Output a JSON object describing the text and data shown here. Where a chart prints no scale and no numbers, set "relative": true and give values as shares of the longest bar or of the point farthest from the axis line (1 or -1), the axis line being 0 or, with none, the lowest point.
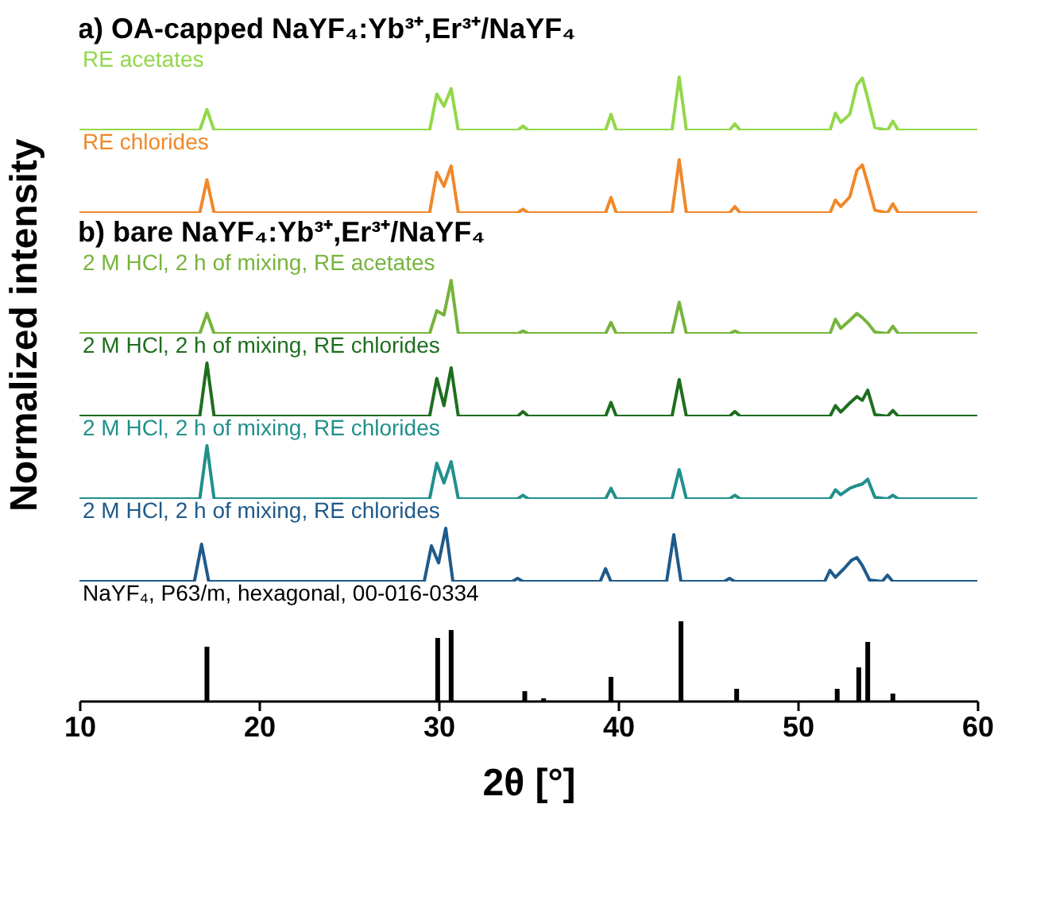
{
  "chart_data": [
    {
      "type": "line",
      "title": "a) OA-capped NaYF₄:Yb³⁺,Er³⁺/NaYF₄",
      "ylabel": "Normalized intensity",
      "relative": true,
      "xlim": [
        10,
        60
      ],
      "tick_labels": false,
      "x": [
        10,
        16.7,
        17.1,
        17.5,
        29.5,
        29.9,
        30.3,
        30.7,
        31.1,
        34.4,
        34.7,
        35.0,
        39.3,
        39.6,
        39.9,
        43.0,
        43.4,
        43.8,
        46.2,
        46.5,
        46.8,
        51.8,
        52.1,
        52.4,
        52.9,
        53.3,
        53.6,
        53.9,
        54.3,
        55.0,
        55.3,
        55.6,
        60
      ],
      "series": [
        {
          "name": "RE acetates",
          "color": "#92d84a",
          "values": [
            0,
            0,
            0.39,
            0,
            0,
            0.68,
            0.45,
            0.78,
            0,
            0,
            0.08,
            0,
            0,
            0.3,
            0,
            0,
            1,
            0,
            0,
            0.12,
            0,
            0,
            0.32,
            0.15,
            0.3,
            0.85,
            0.98,
            0.6,
            0.05,
            0,
            0.17,
            0,
            0
          ]
        }
      ]
    },
    {
      "type": "line",
      "relative": true,
      "xlim": [
        10,
        60
      ],
      "tick_labels": false,
      "x": [
        10,
        16.7,
        17.1,
        17.5,
        29.5,
        29.9,
        30.3,
        30.7,
        31.1,
        34.4,
        34.7,
        35.0,
        39.3,
        39.6,
        39.9,
        43.0,
        43.4,
        43.8,
        46.2,
        46.5,
        46.8,
        51.8,
        52.1,
        52.4,
        52.9,
        53.3,
        53.6,
        53.9,
        54.3,
        55.0,
        55.3,
        55.6,
        60
      ],
      "series": [
        {
          "name": "RE chlorides",
          "color": "#f0882a",
          "values": [
            0,
            0,
            0.62,
            0,
            0,
            0.76,
            0.5,
            0.88,
            0,
            0,
            0.07,
            0,
            0,
            0.29,
            0,
            0,
            1,
            0,
            0,
            0.12,
            0,
            0,
            0.24,
            0.12,
            0.3,
            0.8,
            0.9,
            0.55,
            0.05,
            0,
            0.17,
            0,
            0
          ]
        }
      ]
    },
    {
      "type": "line",
      "title": "b) bare NaYF₄:Yb³⁺,Er³⁺/NaYF₄",
      "relative": true,
      "xlim": [
        10,
        60
      ],
      "tick_labels": false,
      "x": [
        10,
        16.7,
        17.1,
        17.5,
        29.5,
        29.9,
        30.3,
        30.7,
        31.1,
        34.4,
        34.7,
        35.0,
        39.3,
        39.6,
        39.9,
        43.0,
        43.4,
        43.8,
        46.2,
        46.5,
        46.8,
        51.8,
        52.1,
        52.4,
        52.9,
        53.3,
        53.6,
        53.9,
        54.3,
        55.0,
        55.3,
        55.6,
        60
      ],
      "series": [
        {
          "name": "2 M HCl, 2 h of mixing, RE acetates",
          "color": "#76b43c",
          "values": [
            0,
            0,
            0.38,
            0,
            0,
            0.43,
            0.35,
            1,
            0,
            0,
            0.05,
            0,
            0,
            0.21,
            0,
            0,
            0.59,
            0,
            0,
            0.05,
            0,
            0,
            0.27,
            0.1,
            0.25,
            0.38,
            0.3,
            0.2,
            0.03,
            0,
            0.14,
            0,
            0
          ]
        }
      ]
    },
    {
      "type": "line",
      "relative": true,
      "xlim": [
        10,
        60
      ],
      "tick_labels": false,
      "x": [
        10,
        16.7,
        17.1,
        17.5,
        29.5,
        29.9,
        30.3,
        30.7,
        31.1,
        34.4,
        34.7,
        35.0,
        39.3,
        39.6,
        39.9,
        43.0,
        43.4,
        43.8,
        46.2,
        46.5,
        46.8,
        51.8,
        52.1,
        52.4,
        52.9,
        53.3,
        53.6,
        53.9,
        54.3,
        55.0,
        55.3,
        55.6,
        60
      ],
      "series": [
        {
          "name": "2 M HCl, 2 h of mixing, RE chlorides",
          "color": "#1e6e1e",
          "values": [
            0,
            0,
            1,
            0,
            0,
            0.71,
            0.2,
            0.91,
            0,
            0,
            0.09,
            0,
            0,
            0.26,
            0,
            0,
            0.69,
            0,
            0,
            0.09,
            0,
            0,
            0.2,
            0.08,
            0.25,
            0.37,
            0.3,
            0.49,
            0.03,
            0,
            0.11,
            0,
            0
          ]
        }
      ]
    },
    {
      "type": "line",
      "relative": true,
      "xlim": [
        10,
        60
      ],
      "tick_labels": false,
      "x": [
        10,
        16.7,
        17.1,
        17.5,
        29.5,
        29.9,
        30.3,
        30.7,
        31.1,
        34.4,
        34.7,
        35.0,
        39.3,
        39.6,
        39.9,
        43.0,
        43.4,
        43.8,
        46.2,
        46.5,
        46.8,
        51.8,
        52.1,
        52.4,
        52.9,
        53.3,
        53.6,
        53.9,
        54.3,
        55.0,
        55.3,
        55.6,
        60
      ],
      "series": [
        {
          "name": "2 M HCl, 2 h of mixing, RE chlorides",
          "color": "#21908c",
          "values": [
            0,
            0,
            1,
            0,
            0,
            0.67,
            0.3,
            0.7,
            0,
            0,
            0.07,
            0,
            0,
            0.2,
            0,
            0,
            0.55,
            0,
            0,
            0.07,
            0,
            0,
            0.17,
            0.08,
            0.2,
            0.25,
            0.28,
            0.37,
            0.03,
            0,
            0.07,
            0,
            0
          ]
        }
      ]
    },
    {
      "type": "line",
      "relative": true,
      "xlim": [
        10,
        60
      ],
      "tick_labels": false,
      "x": [
        10,
        16.4,
        16.8,
        17.2,
        29.2,
        29.6,
        30.0,
        30.4,
        30.8,
        34.1,
        34.4,
        34.7,
        39.0,
        39.3,
        39.6,
        42.7,
        43.1,
        43.5,
        45.9,
        46.2,
        46.5,
        51.5,
        51.8,
        52.1,
        52.6,
        53.0,
        53.3,
        53.6,
        54.0,
        54.7,
        55.0,
        55.3,
        60
      ],
      "series": [
        {
          "name": "2 M HCl, 2 h of mixing, RE chlorides",
          "color": "#1f5a8a",
          "values": [
            0,
            0,
            0.7,
            0,
            0,
            0.67,
            0.35,
            1,
            0,
            0,
            0.06,
            0,
            0,
            0.24,
            0,
            0,
            0.88,
            0,
            0,
            0.06,
            0,
            0,
            0.21,
            0.08,
            0.25,
            0.4,
            0.45,
            0.3,
            0.03,
            0,
            0.12,
            0,
            0
          ]
        }
      ]
    },
    {
      "type": "bar",
      "relative": true,
      "xlim": [
        10,
        60
      ],
      "xticks": [
        10,
        20,
        30,
        40,
        50,
        60
      ],
      "xlabel": "2θ [°]",
      "x": [
        17.1,
        29.95,
        30.7,
        34.8,
        35.85,
        39.6,
        43.5,
        46.6,
        52.2,
        53.4,
        53.9,
        55.3
      ],
      "series": [
        {
          "name": "NaYF₄, P63/m, hexagonal, 00-016-0334",
          "color": "#000000",
          "values": [
            0.68,
            0.79,
            0.89,
            0.12,
            0.03,
            0.3,
            1,
            0.15,
            0.15,
            0.42,
            0.74,
            0.09
          ]
        }
      ]
    }
  ]
}
